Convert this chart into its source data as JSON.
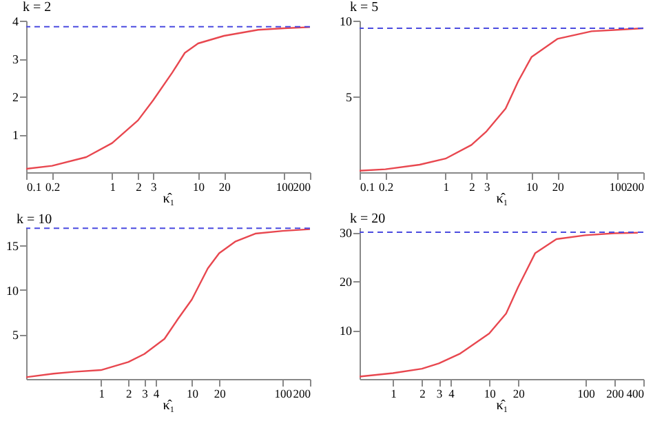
{
  "chart_data": [
    {
      "type": "line",
      "title": "k = 2",
      "xlabel": "κ̂₁",
      "log": "x",
      "xlim": [
        0.1,
        200
      ],
      "xticks": [
        0.1,
        0.2,
        1,
        2,
        3,
        10,
        20,
        100,
        200
      ],
      "ylim": [
        0,
        4
      ],
      "yticks": [
        1,
        2,
        3,
        4
      ],
      "x": [
        0.1,
        0.2,
        0.5,
        1,
        2,
        3,
        5,
        7,
        10,
        20,
        50,
        100,
        200
      ],
      "series": [
        {
          "color": "#e8474f",
          "values": [
            0.09,
            0.17,
            0.4,
            0.77,
            1.37,
            1.9,
            2.63,
            3.15,
            3.4,
            3.6,
            3.76,
            3.8,
            3.83
          ]
        }
      ],
      "ref_lines": [
        {
          "axis": "y",
          "value": 3.84,
          "color": "#4a4adf",
          "line_style": "dashed"
        }
      ]
    },
    {
      "type": "line",
      "title": "k = 5",
      "xlabel": "κ̂₁",
      "log": "x",
      "xlim": [
        0.1,
        200
      ],
      "xticks": [
        0.1,
        0.2,
        1,
        2,
        3,
        10,
        20,
        100,
        200
      ],
      "ylim": [
        0,
        10
      ],
      "yticks": [
        5,
        10
      ],
      "x": [
        0.1,
        0.2,
        0.5,
        1,
        2,
        3,
        5,
        7,
        10,
        20,
        50,
        100,
        200
      ],
      "series": [
        {
          "color": "#e8474f",
          "values": [
            0.1,
            0.2,
            0.5,
            0.9,
            1.8,
            2.7,
            4.2,
            6.0,
            7.6,
            8.8,
            9.3,
            9.4,
            9.5
          ]
        }
      ],
      "ref_lines": [
        {
          "axis": "y",
          "value": 9.5,
          "color": "#4a4adf",
          "line_style": "dashed"
        }
      ]
    },
    {
      "type": "line",
      "title": "k = 10",
      "xlabel": "κ̂₁",
      "log": "x",
      "xlim": [
        0.15,
        200
      ],
      "xticks": [
        1,
        2,
        3,
        4,
        10,
        20,
        100,
        200
      ],
      "ylim": [
        0,
        17
      ],
      "yticks": [
        5,
        10,
        15
      ],
      "x": [
        0.15,
        0.3,
        0.5,
        1,
        2,
        3,
        5,
        7,
        10,
        15,
        20,
        30,
        50,
        100,
        200
      ],
      "series": [
        {
          "color": "#e8474f",
          "values": [
            0.2,
            0.6,
            0.8,
            1.0,
            1.9,
            2.8,
            4.5,
            6.7,
            8.9,
            12.4,
            14.1,
            15.4,
            16.3,
            16.6,
            16.8
          ]
        }
      ],
      "ref_lines": [
        {
          "axis": "y",
          "value": 16.9,
          "color": "#4a4adf",
          "line_style": "dashed"
        }
      ]
    },
    {
      "type": "line",
      "title": "k = 20",
      "xlabel": "κ̂₁",
      "log": "x",
      "xlim": [
        0.45,
        400
      ],
      "xticks": [
        1,
        2,
        3,
        4,
        10,
        20,
        100,
        200,
        400
      ],
      "ylim": [
        0,
        31
      ],
      "yticks": [
        10,
        20,
        30
      ],
      "x": [
        0.45,
        1,
        2,
        3,
        5,
        10,
        15,
        20,
        30,
        50,
        100,
        200,
        350
      ],
      "series": [
        {
          "color": "#e8474f",
          "values": [
            0.5,
            1.2,
            2.1,
            3.2,
            5.2,
            9.3,
            13.4,
            18.8,
            25.7,
            28.6,
            29.4,
            29.8,
            29.9
          ]
        }
      ],
      "ref_lines": [
        {
          "axis": "y",
          "value": 30,
          "color": "#4a4adf",
          "line_style": "dashed"
        }
      ]
    }
  ]
}
